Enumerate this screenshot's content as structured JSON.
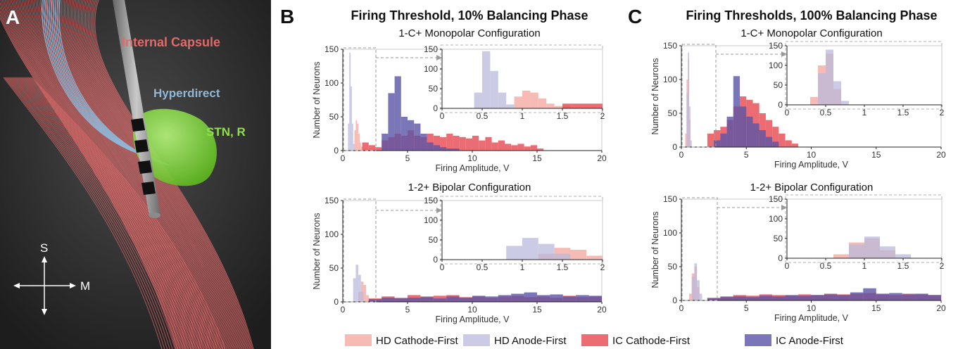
{
  "figure": {
    "panel_labels": {
      "a": "A",
      "b": "B",
      "c": "C"
    },
    "colors": {
      "hd_cathode_first": "#f4a49c",
      "hd_anode_first": "#b9b9dc",
      "ic_cathode_first": "#e8535a",
      "ic_anode_first": "#5a54a6",
      "overlap": "#7a3a78"
    }
  },
  "panel_a": {
    "labels": {
      "internal_capsule": "Internal Capsule",
      "hyperdirect": "Hyperdirect",
      "stn": "STN, R",
      "compass_s": "S",
      "compass_m": "M"
    },
    "colors": {
      "background": "#2b2b2b",
      "internal_capsule": "#e06b6b",
      "hyperdirect": "#8fb8d8",
      "stn": "#8fe04a"
    }
  },
  "panel_b": {
    "title": "Firing Threshold, 10% Balancing Phase",
    "top_subtitle": "1-C+ Monopolar Configuration",
    "bottom_subtitle": "1-2+ Bipolar Configuration"
  },
  "panel_c": {
    "title": "Firing Thresholds, 100% Balancing Phase",
    "top_subtitle": "1-C+ Monopolar Configuration",
    "bottom_subtitle": "1-2+ Bipolar Configuration"
  },
  "legend": {
    "items": [
      {
        "label": "HD Cathode-First",
        "color": "#f4a49c"
      },
      {
        "label": "HD Anode-First",
        "color": "#b9b9dc"
      },
      {
        "label": "IC Cathode-First",
        "color": "#e8535a"
      },
      {
        "label": "IC Anode-First",
        "color": "#5a54a6"
      }
    ]
  },
  "chart_data": [
    {
      "id": "B-top",
      "type": "bar",
      "xlabel": "Firing Amplitude, V",
      "ylabel": "Number of Neurons",
      "xlim": [
        0,
        20
      ],
      "ylim": [
        0,
        150
      ],
      "xticks": [
        0,
        5,
        10,
        15,
        20
      ],
      "yticks": [
        0,
        50,
        100,
        150
      ],
      "inset": {
        "xlim": [
          0,
          2
        ],
        "ylim": [
          0,
          150
        ],
        "xticks": [
          "0",
          "0.5",
          "1",
          "1.5",
          "2"
        ],
        "yticks": [
          "0",
          "50",
          "100",
          "150"
        ]
      },
      "series": [
        {
          "name": "HD Cathode-First",
          "bins": [
            [
              0.9,
              1.0,
              30
            ],
            [
              1.0,
              1.1,
              45
            ],
            [
              1.1,
              1.2,
              40
            ],
            [
              1.2,
              1.3,
              25
            ],
            [
              1.3,
              1.4,
              12
            ],
            [
              1.4,
              1.6,
              6
            ]
          ]
        },
        {
          "name": "HD Anode-First",
          "bins": [
            [
              0.4,
              0.5,
              40
            ],
            [
              0.5,
              0.6,
              145
            ],
            [
              0.6,
              0.7,
              95
            ],
            [
              0.7,
              0.8,
              40
            ],
            [
              0.8,
              0.9,
              10
            ]
          ]
        },
        {
          "name": "IC Cathode-First",
          "bins": [
            [
              1.5,
              2.0,
              12
            ],
            [
              2.0,
              2.5,
              8
            ],
            [
              2.5,
              3.0,
              5
            ],
            [
              3.0,
              3.5,
              15
            ],
            [
              3.5,
              4.0,
              20
            ],
            [
              4.0,
              4.5,
              25
            ],
            [
              4.5,
              5.0,
              22
            ],
            [
              5.0,
              5.5,
              30
            ],
            [
              5.5,
              6.0,
              22
            ],
            [
              6.0,
              6.5,
              20
            ],
            [
              6.5,
              7.0,
              25
            ],
            [
              7.0,
              7.5,
              22
            ],
            [
              7.5,
              8.0,
              20
            ],
            [
              8.0,
              8.5,
              25
            ],
            [
              8.5,
              9.0,
              22
            ],
            [
              9.0,
              9.5,
              20
            ],
            [
              9.5,
              10.0,
              18
            ],
            [
              10.0,
              10.5,
              22
            ],
            [
              10.5,
              11.0,
              15
            ],
            [
              11.0,
              11.5,
              20
            ],
            [
              11.5,
              12.0,
              12
            ],
            [
              12.0,
              12.5,
              15
            ],
            [
              12.5,
              13.0,
              10
            ],
            [
              13.0,
              13.5,
              8
            ],
            [
              13.5,
              14.0,
              10
            ],
            [
              14.0,
              14.5,
              6
            ],
            [
              14.5,
              15.0,
              8
            ],
            [
              15.0,
              15.5,
              3
            ]
          ]
        },
        {
          "name": "IC Anode-First",
          "bins": [
            [
              3.0,
              3.5,
              25
            ],
            [
              3.5,
              4.0,
              85
            ],
            [
              4.0,
              4.5,
              110
            ],
            [
              4.5,
              5.0,
              50
            ],
            [
              5.0,
              5.5,
              45
            ],
            [
              5.5,
              6.0,
              40
            ],
            [
              6.0,
              6.5,
              25
            ],
            [
              6.5,
              7.0,
              12
            ],
            [
              7.0,
              7.5,
              8
            ],
            [
              7.5,
              8.0,
              5
            ],
            [
              8.0,
              9.0,
              3
            ]
          ]
        }
      ]
    },
    {
      "id": "B-bottom",
      "type": "bar",
      "xlabel": "Firing Amplitude, V",
      "ylabel": "Number of Neurons",
      "xlim": [
        0,
        20
      ],
      "ylim": [
        0,
        150
      ],
      "xticks": [
        0,
        5,
        10,
        15,
        20
      ],
      "yticks": [
        0,
        50,
        100,
        150
      ],
      "inset": {
        "xlim": [
          0,
          2
        ],
        "ylim": [
          0,
          150
        ],
        "xticks": [
          "0",
          "0.5",
          "1",
          "1.5",
          "2"
        ],
        "yticks": [
          "0",
          "50",
          "100",
          "150"
        ]
      },
      "series": [
        {
          "name": "HD Cathode-First",
          "bins": [
            [
              1.2,
              1.4,
              15
            ],
            [
              1.4,
              1.6,
              30
            ],
            [
              1.6,
              1.8,
              25
            ],
            [
              1.8,
              2.0,
              10
            ]
          ]
        },
        {
          "name": "HD Anode-First",
          "bins": [
            [
              0.8,
              1.0,
              35
            ],
            [
              1.0,
              1.2,
              55
            ],
            [
              1.2,
              1.4,
              40
            ],
            [
              1.4,
              1.6,
              15
            ]
          ]
        },
        {
          "name": "IC Cathode-First",
          "bins": [
            [
              2,
              3,
              5
            ],
            [
              3,
              4,
              8
            ],
            [
              4,
              5,
              6
            ],
            [
              5,
              6,
              10
            ],
            [
              6,
              7,
              8
            ],
            [
              7,
              8,
              9
            ],
            [
              8,
              9,
              10
            ],
            [
              9,
              10,
              7
            ],
            [
              10,
              11,
              8
            ],
            [
              11,
              12,
              6
            ],
            [
              12,
              13,
              8
            ],
            [
              13,
              14,
              9
            ],
            [
              14,
              15,
              7
            ],
            [
              15,
              16,
              8
            ],
            [
              16,
              17,
              6
            ],
            [
              17,
              18,
              9
            ],
            [
              18,
              19,
              7
            ],
            [
              19,
              20,
              8
            ]
          ]
        },
        {
          "name": "IC Anode-First",
          "bins": [
            [
              2,
              3,
              4
            ],
            [
              3,
              4,
              6
            ],
            [
              4,
              5,
              5
            ],
            [
              5,
              6,
              6
            ],
            [
              6,
              7,
              7
            ],
            [
              7,
              8,
              5
            ],
            [
              8,
              9,
              8
            ],
            [
              9,
              10,
              6
            ],
            [
              10,
              11,
              9
            ],
            [
              11,
              12,
              8
            ],
            [
              12,
              13,
              10
            ],
            [
              13,
              14,
              12
            ],
            [
              14,
              15,
              14
            ],
            [
              15,
              16,
              10
            ],
            [
              16,
              17,
              11
            ],
            [
              17,
              18,
              8
            ],
            [
              18,
              19,
              10
            ],
            [
              19,
              20,
              9
            ]
          ]
        }
      ]
    },
    {
      "id": "C-top",
      "type": "bar",
      "xlabel": "Firing Amplitude, V",
      "ylabel": "Number of Neurons",
      "xlim": [
        0,
        20
      ],
      "ylim": [
        0,
        150
      ],
      "xticks": [
        0,
        5,
        10,
        15,
        20
      ],
      "yticks": [
        0,
        50,
        100,
        150
      ],
      "inset": {
        "xlim": [
          0,
          2
        ],
        "ylim": [
          0,
          150
        ],
        "xticks": [
          "0",
          "0.5",
          "1",
          "1.5",
          "2"
        ],
        "yticks": [
          "0",
          "50",
          "100",
          "150"
        ]
      },
      "series": [
        {
          "name": "HD Cathode-First",
          "bins": [
            [
              0.3,
              0.4,
              20
            ],
            [
              0.4,
              0.5,
              100
            ],
            [
              0.5,
              0.6,
              130
            ],
            [
              0.6,
              0.7,
              40
            ]
          ]
        },
        {
          "name": "HD Anode-First",
          "bins": [
            [
              0.4,
              0.5,
              80
            ],
            [
              0.5,
              0.6,
              140
            ],
            [
              0.6,
              0.7,
              60
            ],
            [
              0.7,
              0.8,
              10
            ]
          ]
        },
        {
          "name": "IC Cathode-First",
          "bins": [
            [
              2.0,
              2.5,
              20
            ],
            [
              2.5,
              3.0,
              25
            ],
            [
              3.0,
              3.5,
              30
            ],
            [
              3.5,
              4.0,
              40
            ],
            [
              4.0,
              4.5,
              60
            ],
            [
              4.5,
              5.0,
              75
            ],
            [
              5.0,
              5.5,
              70
            ],
            [
              5.5,
              6.0,
              65
            ],
            [
              6.0,
              6.5,
              50
            ],
            [
              6.5,
              7.0,
              40
            ],
            [
              7.0,
              7.5,
              30
            ],
            [
              7.5,
              8.0,
              20
            ],
            [
              8.0,
              8.5,
              10
            ],
            [
              8.5,
              9.0,
              5
            ]
          ]
        },
        {
          "name": "IC Anode-First",
          "bins": [
            [
              2.5,
              3.0,
              10
            ],
            [
              3.0,
              3.5,
              20
            ],
            [
              3.5,
              4.0,
              45
            ],
            [
              4.0,
              4.5,
              105
            ],
            [
              4.5,
              5.0,
              60
            ],
            [
              5.0,
              5.5,
              45
            ],
            [
              5.5,
              6.0,
              35
            ],
            [
              6.0,
              6.5,
              25
            ],
            [
              6.5,
              7.0,
              15
            ],
            [
              7.0,
              7.5,
              8
            ]
          ]
        }
      ]
    },
    {
      "id": "C-bottom",
      "type": "bar",
      "xlabel": "Firing Amplitude, V",
      "ylabel": "Number of Neurons",
      "xlim": [
        0,
        20
      ],
      "ylim": [
        0,
        150
      ],
      "xticks": [
        0,
        5,
        10,
        15,
        20
      ],
      "yticks": [
        0,
        50,
        100,
        150
      ],
      "inset": {
        "xlim": [
          0,
          2
        ],
        "ylim": [
          0,
          150
        ],
        "xticks": [
          "0",
          "0.5",
          "1",
          "1.5",
          "2"
        ],
        "yticks": [
          "0",
          "50",
          "100",
          "150"
        ]
      },
      "series": [
        {
          "name": "HD Cathode-First",
          "bins": [
            [
              0.6,
              0.8,
              10
            ],
            [
              0.8,
              1.0,
              40
            ],
            [
              1.0,
              1.2,
              50
            ],
            [
              1.2,
              1.4,
              20
            ]
          ]
        },
        {
          "name": "HD Anode-First",
          "bins": [
            [
              0.8,
              1.0,
              35
            ],
            [
              1.0,
              1.2,
              55
            ],
            [
              1.2,
              1.4,
              30
            ],
            [
              1.4,
              1.6,
              10
            ]
          ]
        },
        {
          "name": "IC Cathode-First",
          "bins": [
            [
              2,
              3,
              4
            ],
            [
              3,
              4,
              6
            ],
            [
              4,
              5,
              8
            ],
            [
              5,
              6,
              7
            ],
            [
              6,
              7,
              9
            ],
            [
              7,
              8,
              8
            ],
            [
              8,
              9,
              7
            ],
            [
              9,
              10,
              9
            ],
            [
              10,
              11,
              8
            ],
            [
              11,
              12,
              10
            ],
            [
              12,
              13,
              9
            ],
            [
              13,
              14,
              10
            ],
            [
              14,
              15,
              11
            ],
            [
              15,
              16,
              9
            ],
            [
              16,
              17,
              8
            ],
            [
              17,
              18,
              10
            ],
            [
              18,
              19,
              9
            ],
            [
              19,
              20,
              8
            ]
          ]
        },
        {
          "name": "IC Anode-First",
          "bins": [
            [
              2,
              3,
              3
            ],
            [
              3,
              4,
              5
            ],
            [
              4,
              5,
              6
            ],
            [
              5,
              6,
              5
            ],
            [
              6,
              7,
              7
            ],
            [
              7,
              8,
              6
            ],
            [
              8,
              9,
              8
            ],
            [
              9,
              10,
              7
            ],
            [
              10,
              11,
              8
            ],
            [
              11,
              12,
              9
            ],
            [
              12,
              13,
              8
            ],
            [
              13,
              14,
              12
            ],
            [
              14,
              15,
              18
            ],
            [
              15,
              16,
              10
            ],
            [
              16,
              17,
              11
            ],
            [
              17,
              18,
              9
            ],
            [
              18,
              19,
              10
            ],
            [
              19,
              20,
              8
            ]
          ]
        }
      ]
    }
  ]
}
